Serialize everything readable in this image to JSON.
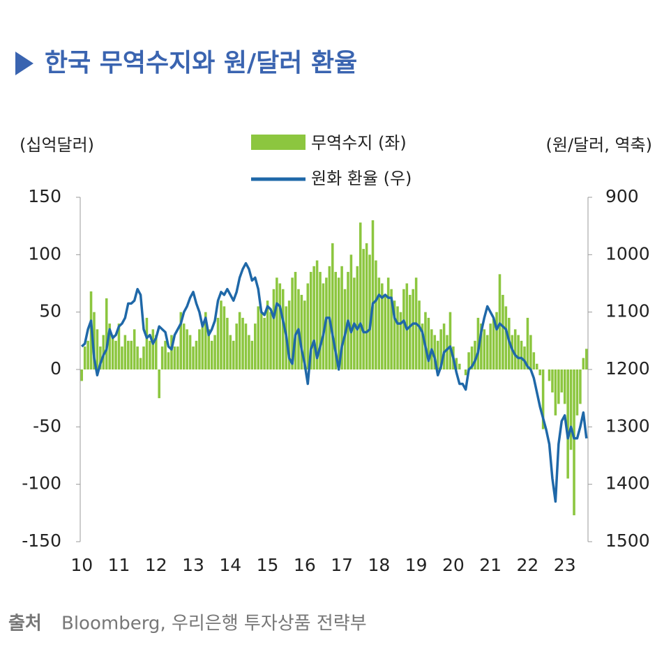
{
  "chart_data": {
    "type": "bar_line",
    "title": "한국 무역수지와 원/달러 환율",
    "y_label": "(십억달러)",
    "y2_label": "(원/달러, 역축)",
    "source_label": "출처",
    "source": "Bloomberg, 우리은행 투자상품 전략부",
    "categories": [
      "10",
      null,
      null,
      null,
      null,
      null,
      null,
      null,
      null,
      null,
      null,
      null,
      "11",
      null,
      null,
      null,
      null,
      null,
      null,
      null,
      null,
      null,
      null,
      null,
      "12",
      null,
      null,
      null,
      null,
      null,
      null,
      null,
      null,
      null,
      null,
      null,
      "13",
      null,
      null,
      null,
      null,
      null,
      null,
      null,
      null,
      null,
      null,
      null,
      "14",
      null,
      null,
      null,
      null,
      null,
      null,
      null,
      null,
      null,
      null,
      null,
      "15",
      null,
      null,
      null,
      null,
      null,
      null,
      null,
      null,
      null,
      null,
      null,
      "16",
      null,
      null,
      null,
      null,
      null,
      null,
      null,
      null,
      null,
      null,
      null,
      "17",
      null,
      null,
      null,
      null,
      null,
      null,
      null,
      null,
      null,
      null,
      null,
      "18",
      null,
      null,
      null,
      null,
      null,
      null,
      null,
      null,
      null,
      null,
      null,
      "19",
      null,
      null,
      null,
      null,
      null,
      null,
      null,
      null,
      null,
      null,
      null,
      "20",
      null,
      null,
      null,
      null,
      null,
      null,
      null,
      null,
      null,
      null,
      null,
      "21",
      null,
      null,
      null,
      null,
      null,
      null,
      null,
      null,
      null,
      null,
      null,
      "22",
      null,
      null,
      null,
      null,
      null,
      null,
      null,
      null,
      null,
      null,
      null,
      "23",
      null,
      null,
      null,
      null,
      null,
      null,
      null
    ],
    "series": [
      {
        "name": "무역수지 (좌)",
        "type": "bar",
        "color": "#8cc63f",
        "values": [
          -10,
          20,
          25,
          68,
          50,
          35,
          20,
          30,
          62,
          40,
          30,
          25,
          40,
          20,
          30,
          25,
          25,
          35,
          20,
          10,
          20,
          45,
          25,
          35,
          30,
          -25,
          20,
          25,
          15,
          30,
          20,
          20,
          50,
          40,
          35,
          30,
          20,
          25,
          35,
          40,
          50,
          35,
          25,
          30,
          45,
          60,
          55,
          45,
          30,
          25,
          40,
          50,
          45,
          40,
          30,
          25,
          40,
          55,
          50,
          45,
          60,
          50,
          70,
          80,
          75,
          70,
          55,
          60,
          80,
          85,
          70,
          65,
          60,
          75,
          85,
          90,
          95,
          85,
          75,
          80,
          90,
          110,
          85,
          80,
          90,
          70,
          85,
          100,
          80,
          90,
          128,
          105,
          110,
          100,
          130,
          95,
          80,
          75,
          65,
          80,
          70,
          60,
          55,
          50,
          70,
          75,
          65,
          70,
          80,
          60,
          40,
          50,
          45,
          35,
          30,
          25,
          35,
          40,
          30,
          50,
          20,
          10,
          5,
          0,
          -5,
          15,
          20,
          25,
          45,
          40,
          35,
          30,
          40,
          45,
          50,
          83,
          65,
          55,
          45,
          30,
          35,
          30,
          25,
          20,
          45,
          30,
          15,
          5,
          -5,
          -52,
          0,
          -10,
          -20,
          -40,
          -30,
          -20,
          -30,
          -95,
          -70,
          -127,
          -40,
          -30,
          10,
          18
        ]
      },
      {
        "name": "원화 환율 (우)",
        "type": "line",
        "axis": "y2",
        "color": "#1f68a8",
        "values": [
          1160,
          1155,
          1130,
          1115,
          1180,
          1210,
          1190,
          1175,
          1165,
          1130,
          1145,
          1140,
          1125,
          1120,
          1110,
          1085,
          1085,
          1080,
          1060,
          1070,
          1130,
          1145,
          1140,
          1155,
          1145,
          1125,
          1130,
          1135,
          1160,
          1165,
          1140,
          1130,
          1120,
          1100,
          1090,
          1075,
          1065,
          1085,
          1100,
          1125,
          1110,
          1140,
          1130,
          1115,
          1080,
          1065,
          1070,
          1060,
          1070,
          1080,
          1065,
          1040,
          1025,
          1015,
          1025,
          1045,
          1040,
          1060,
          1100,
          1105,
          1090,
          1095,
          1110,
          1085,
          1090,
          1115,
          1140,
          1180,
          1190,
          1140,
          1130,
          1165,
          1190,
          1225,
          1165,
          1150,
          1180,
          1160,
          1140,
          1110,
          1110,
          1140,
          1170,
          1200,
          1160,
          1140,
          1115,
          1135,
          1120,
          1130,
          1120,
          1135,
          1135,
          1130,
          1085,
          1080,
          1070,
          1075,
          1070,
          1075,
          1075,
          1110,
          1120,
          1120,
          1115,
          1130,
          1125,
          1120,
          1120,
          1125,
          1135,
          1160,
          1185,
          1165,
          1180,
          1210,
          1195,
          1170,
          1165,
          1160,
          1180,
          1205,
          1225,
          1225,
          1235,
          1200,
          1195,
          1185,
          1170,
          1135,
          1110,
          1090,
          1100,
          1110,
          1130,
          1120,
          1125,
          1130,
          1150,
          1165,
          1175,
          1180,
          1180,
          1185,
          1195,
          1200,
          1215,
          1240,
          1265,
          1285,
          1305,
          1330,
          1390,
          1430,
          1330,
          1290,
          1280,
          1320,
          1300,
          1320,
          1320,
          1300,
          1275,
          1320
        ]
      }
    ],
    "ylim": [
      -150,
      150
    ],
    "yticks": [
      150,
      100,
      50,
      0,
      -50,
      -100,
      -150
    ],
    "y2lim": [
      900,
      1500
    ],
    "y2ticks": [
      900,
      1000,
      1100,
      1200,
      1300,
      1400,
      1500
    ],
    "y2_reversed": true
  }
}
